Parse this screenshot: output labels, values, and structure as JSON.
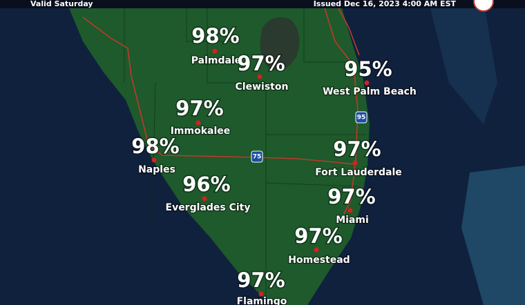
{
  "header": {
    "left": "Valid Saturday",
    "right": "Issued Dec 16, 2023 4:00 AM EST"
  },
  "shields": [
    "95",
    "75"
  ],
  "cities": [
    {
      "name": "Palmdale",
      "label": "98%"
    },
    {
      "name": "Clewiston",
      "label": "97%"
    },
    {
      "name": "West Palm Beach",
      "label": "95%"
    },
    {
      "name": "Immokalee",
      "label": "97%"
    },
    {
      "name": "Naples",
      "label": "98%"
    },
    {
      "name": "Fort Lauderdale",
      "label": "97%"
    },
    {
      "name": "Everglades City",
      "label": "96%"
    },
    {
      "name": "Miami",
      "label": "97%"
    },
    {
      "name": "Homestead",
      "label": "97%"
    },
    {
      "name": "Flamingo",
      "label": "97%"
    }
  ]
}
